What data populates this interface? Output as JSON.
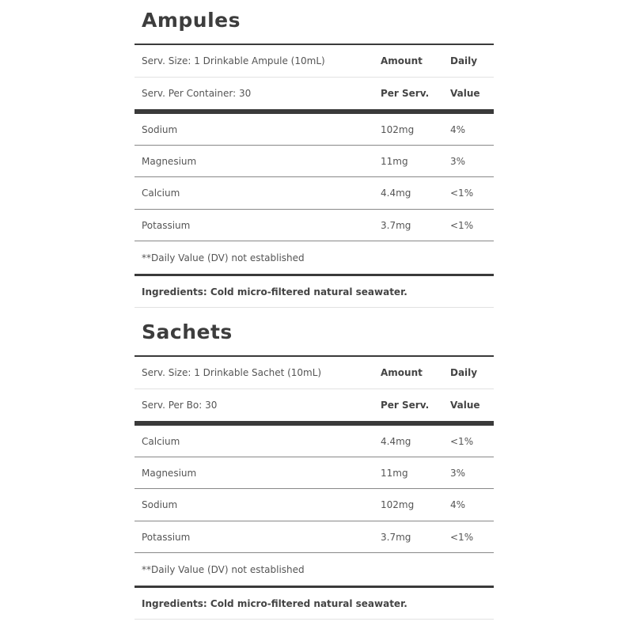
{
  "sections": [
    {
      "title": "Ampules",
      "serving_size": "Serv. Size: 1 Drinkable Ampule (10mL)",
      "servings_per": "Serv. Per Container: 30",
      "header_amount_1": "Amount",
      "header_amount_2": "Per Serv.",
      "header_daily_1": "Daily",
      "header_daily_2": "Value",
      "nutrients": [
        {
          "name": "Sodium",
          "amount": "102mg",
          "dv": "4%"
        },
        {
          "name": "Magnesium",
          "amount": "11mg",
          "dv": "3%"
        },
        {
          "name": "Calcium",
          "amount": "4.4mg",
          "dv": "<1%"
        },
        {
          "name": "Potassium",
          "amount": "3.7mg",
          "dv": "<1%"
        }
      ],
      "footnote": "**Daily Value (DV) not established",
      "ingredients": "Ingredients: Cold micro-filtered natural seawater."
    },
    {
      "title": "Sachets",
      "serving_size": "Serv. Size: 1 Drinkable Sachet (10mL)",
      "servings_per": "Serv. Per Bo: 30",
      "header_amount_1": "Amount",
      "header_amount_2": "Per Serv.",
      "header_daily_1": "Daily",
      "header_daily_2": "Value",
      "nutrients": [
        {
          "name": "Calcium",
          "amount": "4.4mg",
          "dv": "<1%"
        },
        {
          "name": "Magnesium",
          "amount": "11mg",
          "dv": "3%"
        },
        {
          "name": "Sodium",
          "amount": "102mg",
          "dv": "4%"
        },
        {
          "name": "Potassium",
          "amount": "3.7mg",
          "dv": "<1%"
        }
      ],
      "footnote": "**Daily Value (DV) not established",
      "ingredients": "Ingredients: Cold micro-filtered natural seawater."
    }
  ]
}
